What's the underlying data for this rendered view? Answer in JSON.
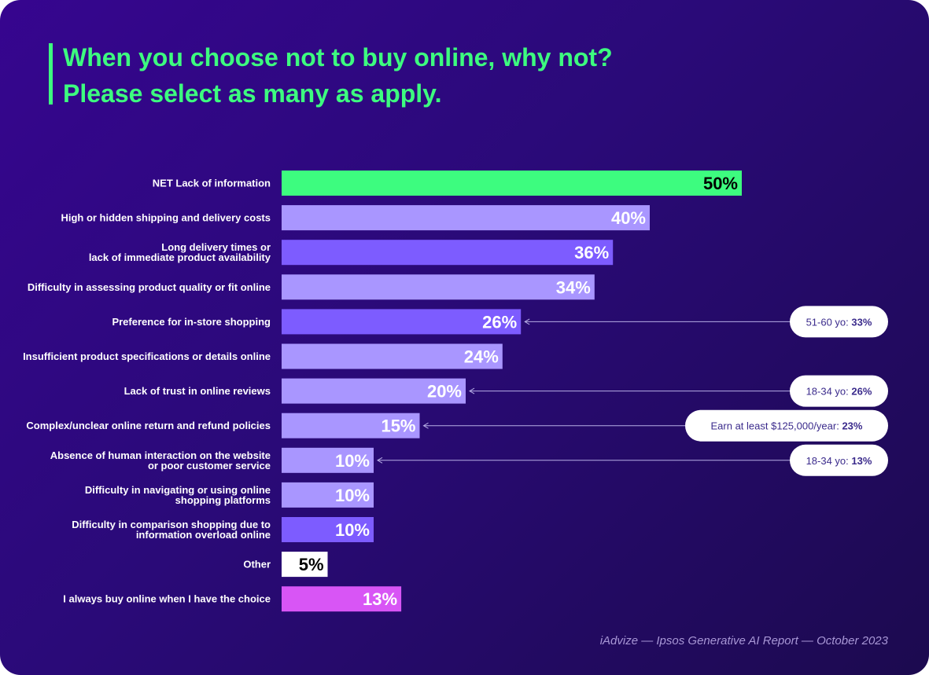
{
  "title": {
    "line1": "When you choose not to buy online, why not?",
    "line2": "Please select as many as apply."
  },
  "chart_data": {
    "type": "bar",
    "orientation": "horizontal",
    "unit": "%",
    "xlim": [
      0,
      50
    ],
    "grid": false,
    "categories": [
      "NET Lack of information",
      "High or hidden shipping and delivery costs",
      "Long delivery times or\nlack of immediate product availability",
      "Difficulty in assessing product quality or fit online",
      "Preference for in-store shopping",
      "Insufficient product specifications or details online",
      "Lack of trust in online reviews",
      "Complex/unclear online return and refund policies",
      "Absence of human interaction on the website\nor poor customer service",
      "Difficulty in navigating or using online\nshopping platforms",
      "Difficulty in comparison shopping due to\ninformation overload online",
      "Other",
      "I always buy online when I have the choice"
    ],
    "values": [
      50,
      40,
      36,
      34,
      26,
      24,
      20,
      15,
      10,
      10,
      10,
      5,
      13
    ],
    "value_labels": [
      "50%",
      "40%",
      "36%",
      "34%",
      "26%",
      "24%",
      "20%",
      "15%",
      "10%",
      "10%",
      "10%",
      "5%",
      "13%"
    ],
    "bar_colors": [
      "#3dfc7f",
      "#a996ff",
      "#7d5cff",
      "#a996ff",
      "#7d5cff",
      "#a996ff",
      "#a996ff",
      "#a996ff",
      "#a996ff",
      "#a996ff",
      "#7d5cff",
      "#ffffff",
      "#d855f5"
    ],
    "label_colors": [
      "#000000",
      "#ffffff",
      "#ffffff",
      "#ffffff",
      "#ffffff",
      "#ffffff",
      "#ffffff",
      "#ffffff",
      "#ffffff",
      "#ffffff",
      "#ffffff",
      "#000000",
      "#ffffff"
    ],
    "annotations": [
      {
        "bar": 4,
        "prefix": "51-60 yo: ",
        "value": "33%"
      },
      {
        "bar": 6,
        "prefix": "18-34 yo: ",
        "value": "26%"
      },
      {
        "bar": 7,
        "prefix": "Earn at least $125,000/year: ",
        "value": "23%"
      },
      {
        "bar": 8,
        "prefix": "18-34 yo: ",
        "value": "13%"
      }
    ]
  },
  "footer": "iAdvize — Ipsos Generative AI Report — October 2023"
}
